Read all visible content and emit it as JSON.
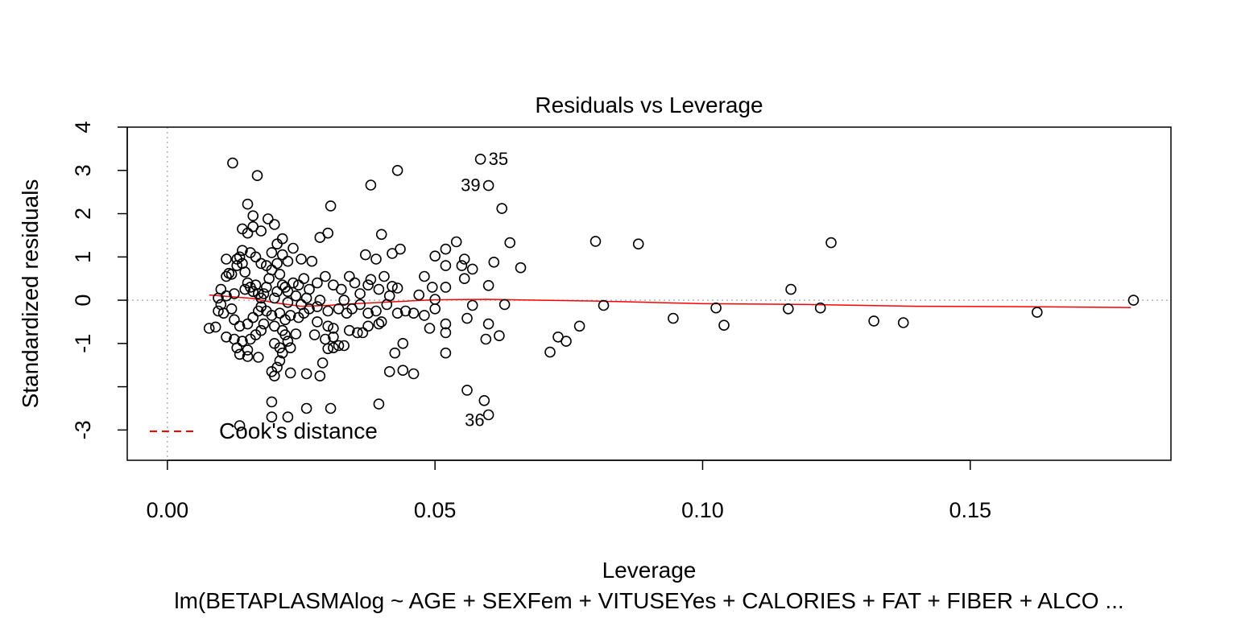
{
  "chart_data": {
    "type": "scatter",
    "title": "Residuals vs Leverage",
    "xlabel": "Leverage",
    "ylabel": "Standardized residuals",
    "subtitle": "lm(BETAPLASMAlog ~ AGE + SEXFem + VITUSEYes + CALORIES + FAT + FIBER + ALCO ...",
    "xlim": [
      -0.0075,
      0.1875
    ],
    "ylim": [
      -3.7,
      4.0
    ],
    "x_ticks": [
      0.0,
      0.05,
      0.1,
      0.15
    ],
    "x_tick_labels": [
      "0.00",
      "0.05",
      "0.10",
      "0.15"
    ],
    "y_ticks": [
      -3,
      -1,
      0,
      1,
      2,
      3,
      4
    ],
    "y_tick_labels": [
      "-3",
      "-1",
      "0",
      "1",
      "2",
      "3",
      "4"
    ],
    "y_minor_ticks": [
      -2
    ],
    "reference_lines": {
      "x": 0,
      "y": 0,
      "style": "dotted",
      "color": "#b3b3b3"
    },
    "legend": {
      "position": "bottom-left",
      "entries": [
        {
          "label": "Cook's distance",
          "line": "dashed",
          "color": "#ff0000"
        }
      ]
    },
    "point_labels": [
      {
        "label": "35",
        "x": 0.0585,
        "y": 3.26
      },
      {
        "label": "39",
        "x": 0.06,
        "y": 2.65
      },
      {
        "label": "36",
        "x": 0.06,
        "y": -2.65
      }
    ],
    "smoother": {
      "color": "#ff0000",
      "x": [
        0.0078,
        0.012,
        0.016,
        0.02,
        0.025,
        0.03,
        0.035,
        0.04,
        0.045,
        0.05,
        0.06,
        0.07,
        0.08,
        0.09,
        0.1,
        0.12,
        0.14,
        0.16,
        0.18
      ],
      "y": [
        0.12,
        0.08,
        0.04,
        -0.06,
        -0.14,
        -0.12,
        -0.08,
        -0.05,
        -0.02,
        0.01,
        0.02,
        0.0,
        -0.02,
        -0.05,
        -0.08,
        -0.1,
        -0.14,
        -0.15,
        -0.17
      ]
    },
    "points": [
      [
        0.0585,
        3.26
      ],
      [
        0.06,
        2.65
      ],
      [
        0.06,
        -2.65
      ],
      [
        0.056,
        -2.08
      ],
      [
        0.0592,
        -2.32
      ],
      [
        0.0122,
        3.17
      ],
      [
        0.0168,
        2.88
      ],
      [
        0.038,
        2.66
      ],
      [
        0.043,
        3.0
      ],
      [
        0.0625,
        2.12
      ],
      [
        0.0305,
        2.18
      ],
      [
        0.015,
        2.22
      ],
      [
        0.0188,
        1.88
      ],
      [
        0.016,
        1.95
      ],
      [
        0.0215,
        1.42
      ],
      [
        0.064,
        1.33
      ],
      [
        0.08,
        1.36
      ],
      [
        0.088,
        1.3
      ],
      [
        0.124,
        1.33
      ],
      [
        0.066,
        0.75
      ],
      [
        0.054,
        1.35
      ],
      [
        0.052,
        1.18
      ],
      [
        0.05,
        1.02
      ],
      [
        0.061,
        0.88
      ],
      [
        0.0555,
        0.95
      ],
      [
        0.057,
        0.72
      ],
      [
        0.052,
        0.8
      ],
      [
        0.055,
        0.8
      ],
      [
        0.048,
        0.55
      ],
      [
        0.0555,
        0.5
      ],
      [
        0.04,
        1.52
      ],
      [
        0.0435,
        1.18
      ],
      [
        0.042,
        1.08
      ],
      [
        0.037,
        1.05
      ],
      [
        0.039,
        0.95
      ],
      [
        0.0405,
        0.55
      ],
      [
        0.038,
        0.48
      ],
      [
        0.042,
        0.32
      ],
      [
        0.043,
        0.28
      ],
      [
        0.0495,
        0.3
      ],
      [
        0.052,
        0.3
      ],
      [
        0.06,
        0.34
      ],
      [
        0.047,
        0.12
      ],
      [
        0.05,
        0.02
      ],
      [
        0.063,
        -0.1
      ],
      [
        0.057,
        -0.12
      ],
      [
        0.056,
        -0.42
      ],
      [
        0.06,
        -0.55
      ],
      [
        0.05,
        -0.2
      ],
      [
        0.048,
        -0.35
      ],
      [
        0.046,
        -0.3
      ],
      [
        0.0445,
        -0.25
      ],
      [
        0.043,
        -0.3
      ],
      [
        0.041,
        -0.1
      ],
      [
        0.052,
        -0.55
      ],
      [
        0.052,
        -0.75
      ],
      [
        0.049,
        -0.65
      ],
      [
        0.062,
        -0.82
      ],
      [
        0.0595,
        -0.9
      ],
      [
        0.052,
        -1.22
      ],
      [
        0.044,
        -1.0
      ],
      [
        0.0425,
        -1.22
      ],
      [
        0.044,
        -1.62
      ],
      [
        0.046,
        -1.7
      ],
      [
        0.0415,
        -1.65
      ],
      [
        0.0395,
        -2.4
      ],
      [
        0.0395,
        -0.55
      ],
      [
        0.0375,
        -0.6
      ],
      [
        0.0355,
        -0.75
      ],
      [
        0.034,
        -0.7
      ],
      [
        0.033,
        -1.05
      ],
      [
        0.032,
        -1.05
      ],
      [
        0.031,
        -1.1
      ],
      [
        0.03,
        -1.12
      ],
      [
        0.0295,
        -0.9
      ],
      [
        0.031,
        -0.65
      ],
      [
        0.03,
        -0.6
      ],
      [
        0.028,
        -0.5
      ],
      [
        0.029,
        -1.45
      ],
      [
        0.0285,
        -1.75
      ],
      [
        0.026,
        -1.7
      ],
      [
        0.023,
        -1.68
      ],
      [
        0.0225,
        -2.7
      ],
      [
        0.026,
        -2.5
      ],
      [
        0.0305,
        -2.5
      ],
      [
        0.0195,
        -2.35
      ],
      [
        0.0195,
        -2.7
      ],
      [
        0.0135,
        -2.9
      ],
      [
        0.0215,
        -1.22
      ],
      [
        0.021,
        -1.4
      ],
      [
        0.0205,
        -1.55
      ],
      [
        0.02,
        -1.75
      ],
      [
        0.0195,
        -1.65
      ],
      [
        0.021,
        -1.1
      ],
      [
        0.02,
        -1.0
      ],
      [
        0.023,
        -1.1
      ],
      [
        0.0225,
        -0.95
      ],
      [
        0.0215,
        -0.7
      ],
      [
        0.02,
        -0.6
      ],
      [
        0.018,
        -0.55
      ],
      [
        0.0175,
        -0.7
      ],
      [
        0.0165,
        -0.8
      ],
      [
        0.0155,
        -0.9
      ],
      [
        0.014,
        -0.95
      ],
      [
        0.013,
        -1.1
      ],
      [
        0.0135,
        -1.25
      ],
      [
        0.015,
        -1.15
      ],
      [
        0.015,
        -1.3
      ],
      [
        0.017,
        -1.32
      ],
      [
        0.0125,
        -0.9
      ],
      [
        0.011,
        -0.85
      ],
      [
        0.009,
        -0.62
      ],
      [
        0.0078,
        -0.65
      ],
      [
        0.0095,
        -0.25
      ],
      [
        0.01,
        -0.1
      ],
      [
        0.0105,
        -0.3
      ],
      [
        0.012,
        -0.2
      ],
      [
        0.0125,
        -0.45
      ],
      [
        0.0135,
        -0.6
      ],
      [
        0.015,
        -0.55
      ],
      [
        0.016,
        -0.4
      ],
      [
        0.017,
        -0.25
      ],
      [
        0.0175,
        -0.15
      ],
      [
        0.0185,
        -0.25
      ],
      [
        0.0195,
        -0.35
      ],
      [
        0.021,
        -0.3
      ],
      [
        0.022,
        -0.45
      ],
      [
        0.023,
        -0.35
      ],
      [
        0.0245,
        -0.4
      ],
      [
        0.0255,
        -0.3
      ],
      [
        0.0265,
        -0.2
      ],
      [
        0.028,
        -0.15
      ],
      [
        0.03,
        -0.25
      ],
      [
        0.032,
        -0.2
      ],
      [
        0.0335,
        -0.3
      ],
      [
        0.0345,
        -0.2
      ],
      [
        0.036,
        -0.1
      ],
      [
        0.0375,
        -0.3
      ],
      [
        0.039,
        -0.25
      ],
      [
        0.04,
        -0.5
      ],
      [
        0.0365,
        -0.75
      ],
      [
        0.031,
        -0.85
      ],
      [
        0.0275,
        -0.8
      ],
      [
        0.024,
        -0.78
      ],
      [
        0.022,
        -0.8
      ],
      [
        0.01,
        0.25
      ],
      [
        0.011,
        0.55
      ],
      [
        0.0115,
        0.62
      ],
      [
        0.012,
        0.6
      ],
      [
        0.013,
        0.8
      ],
      [
        0.0135,
        1.0
      ],
      [
        0.014,
        0.85
      ],
      [
        0.0145,
        0.65
      ],
      [
        0.015,
        0.4
      ],
      [
        0.0155,
        0.3
      ],
      [
        0.016,
        0.2
      ],
      [
        0.017,
        0.15
      ],
      [
        0.0175,
        0.05
      ],
      [
        0.0185,
        0.3
      ],
      [
        0.019,
        0.5
      ],
      [
        0.0195,
        0.7
      ],
      [
        0.0205,
        0.85
      ],
      [
        0.021,
        0.6
      ],
      [
        0.0215,
        0.35
      ],
      [
        0.0225,
        0.2
      ],
      [
        0.0235,
        0.4
      ],
      [
        0.0245,
        0.35
      ],
      [
        0.0255,
        0.5
      ],
      [
        0.0265,
        0.25
      ],
      [
        0.028,
        0.4
      ],
      [
        0.0295,
        0.55
      ],
      [
        0.031,
        0.35
      ],
      [
        0.0325,
        0.25
      ],
      [
        0.034,
        0.55
      ],
      [
        0.035,
        0.4
      ],
      [
        0.036,
        0.15
      ],
      [
        0.0375,
        0.35
      ],
      [
        0.0395,
        0.25
      ],
      [
        0.0415,
        0.1
      ],
      [
        0.013,
        0.95
      ],
      [
        0.011,
        0.95
      ],
      [
        0.014,
        1.15
      ],
      [
        0.0155,
        1.1
      ],
      [
        0.0165,
        1.0
      ],
      [
        0.0175,
        0.85
      ],
      [
        0.0185,
        0.8
      ],
      [
        0.0195,
        1.1
      ],
      [
        0.0205,
        1.3
      ],
      [
        0.0215,
        1.05
      ],
      [
        0.0225,
        0.9
      ],
      [
        0.0235,
        1.2
      ],
      [
        0.025,
        0.95
      ],
      [
        0.027,
        0.9
      ],
      [
        0.0285,
        1.45
      ],
      [
        0.03,
        1.55
      ],
      [
        0.015,
        1.55
      ],
      [
        0.016,
        1.7
      ],
      [
        0.0175,
        1.6
      ],
      [
        0.02,
        1.75
      ],
      [
        0.014,
        1.65
      ],
      [
        0.0165,
        0.35
      ],
      [
        0.018,
        0.15
      ],
      [
        0.02,
        0.05
      ],
      [
        0.0225,
        -0.05
      ],
      [
        0.025,
        -0.1
      ],
      [
        0.011,
        0.1
      ],
      [
        0.0095,
        0.05
      ],
      [
        0.0125,
        0.15
      ],
      [
        0.0145,
        0.25
      ],
      [
        0.0205,
        0.2
      ],
      [
        0.022,
        0.3
      ],
      [
        0.024,
        0.1
      ],
      [
        0.026,
        0.05
      ],
      [
        0.0285,
        0.0
      ],
      [
        0.033,
        0.0
      ],
      [
        0.0745,
        -0.95
      ],
      [
        0.073,
        -0.85
      ],
      [
        0.077,
        -0.6
      ],
      [
        0.0715,
        -1.2
      ],
      [
        0.0815,
        -0.12
      ],
      [
        0.0945,
        -0.42
      ],
      [
        0.1025,
        -0.18
      ],
      [
        0.104,
        -0.58
      ],
      [
        0.116,
        -0.2
      ],
      [
        0.1165,
        0.25
      ],
      [
        0.122,
        -0.18
      ],
      [
        0.132,
        -0.48
      ],
      [
        0.1375,
        -0.52
      ],
      [
        0.1625,
        -0.28
      ],
      [
        0.1805,
        0.0
      ]
    ]
  }
}
